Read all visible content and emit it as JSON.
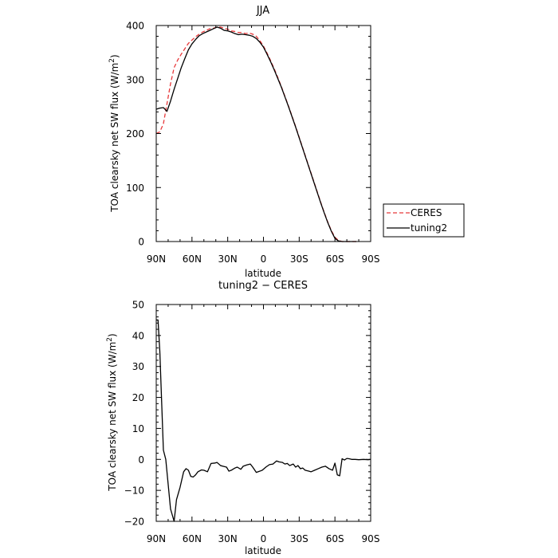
{
  "chart_data": [
    {
      "type": "line",
      "title": "JJA",
      "xlabel": "latitude",
      "ylabel": "TOA clearsky net SW flux (W/m²)",
      "ylabel_parts": [
        "TOA clearsky net SW flux (W/m",
        "2",
        ")"
      ],
      "xlim": [
        90,
        -90
      ],
      "ylim": [
        0,
        400
      ],
      "x_ticks": [
        90,
        60,
        30,
        0,
        -30,
        -60,
        -90
      ],
      "x_tick_labels": [
        "90N",
        "60N",
        "30N",
        "0",
        "30S",
        "60S",
        "90S"
      ],
      "y_ticks": [
        0,
        100,
        200,
        300,
        400
      ],
      "y_tick_labels": [
        "0",
        "100",
        "200",
        "300",
        "400"
      ],
      "legend": "right-outside",
      "series": [
        {
          "name": "CERES",
          "color": "#e8393b",
          "style": "dashed",
          "x": [
            90,
            87,
            84,
            81,
            78,
            75,
            72,
            69,
            66,
            63,
            60,
            57,
            54,
            51,
            48,
            45,
            42,
            39,
            36,
            33,
            30,
            27,
            24,
            21,
            18,
            15,
            12,
            9,
            6,
            3,
            0,
            -3,
            -6,
            -9,
            -12,
            -15,
            -18,
            -21,
            -24,
            -27,
            -30,
            -33,
            -36,
            -39,
            -42,
            -45,
            -48,
            -51,
            -54,
            -57,
            -60,
            -63,
            -66,
            -69,
            -72,
            -75,
            -78
          ],
          "y": [
            200,
            203,
            218,
            255,
            292,
            322,
            336,
            347,
            357,
            367,
            373,
            379,
            384,
            388,
            391,
            394,
            395,
            397,
            397,
            395,
            393,
            390,
            389,
            387,
            387,
            385,
            386,
            384,
            380,
            372,
            362,
            349,
            335,
            320,
            304,
            287,
            269,
            251,
            232,
            213,
            193,
            173,
            153,
            133,
            113,
            93,
            73,
            54,
            36,
            20,
            8,
            2,
            0,
            0,
            0,
            0,
            0
          ]
        },
        {
          "name": "tuning2",
          "color": "#000000",
          "style": "solid",
          "x": [
            90,
            87,
            84,
            81,
            78,
            75,
            72,
            69,
            66,
            63,
            60,
            57,
            54,
            51,
            48,
            45,
            42,
            39,
            36,
            33,
            30,
            27,
            24,
            21,
            18,
            15,
            12,
            9,
            6,
            3,
            0,
            -3,
            -6,
            -9,
            -12,
            -15,
            -18,
            -21,
            -24,
            -27,
            -30,
            -33,
            -36,
            -39,
            -42,
            -45,
            -48,
            -51,
            -54,
            -57,
            -60,
            -63,
            -66,
            -69,
            -72,
            -75,
            -78
          ],
          "y": [
            245,
            247,
            248,
            241,
            260,
            282,
            302,
            322,
            339,
            355,
            366,
            374,
            381,
            385,
            388,
            391,
            394,
            397,
            395,
            391,
            390,
            388,
            385,
            383,
            384,
            383,
            382,
            380,
            376,
            369,
            360,
            347,
            333,
            318,
            302,
            286,
            268,
            250,
            231,
            212,
            192,
            172,
            152,
            132,
            112,
            92,
            72,
            53,
            35,
            19,
            6,
            1,
            0,
            0,
            0,
            0,
            0
          ]
        }
      ]
    },
    {
      "type": "line",
      "title": "tuning2 − CERES",
      "xlabel": "latitude",
      "ylabel": "TOA clearsky net SW flux (W/m²)",
      "ylabel_parts": [
        "TOA clearsky net SW flux (W/m",
        "2",
        ")"
      ],
      "xlim": [
        90,
        -90
      ],
      "ylim": [
        -20,
        50
      ],
      "x_ticks": [
        90,
        60,
        30,
        0,
        -30,
        -60,
        -90
      ],
      "x_tick_labels": [
        "90N",
        "60N",
        "30N",
        "0",
        "30S",
        "60S",
        "90S"
      ],
      "y_ticks": [
        -20,
        -10,
        0,
        10,
        20,
        30,
        40,
        50
      ],
      "y_tick_labels": [
        "−20",
        "−10",
        "0",
        "10",
        "20",
        "30",
        "40",
        "50"
      ],
      "series": [
        {
          "name": "tuning2 − CERES",
          "color": "#000000",
          "style": "solid",
          "x": [
            90,
            88.5,
            87,
            84,
            82,
            80,
            78,
            75,
            73,
            70,
            67,
            65,
            63,
            61,
            59,
            57,
            55,
            52,
            50,
            47,
            44,
            41,
            39,
            36,
            34,
            31,
            29,
            27,
            24,
            22,
            19,
            17,
            14,
            11,
            9,
            6,
            3,
            1,
            -2,
            -5,
            -8,
            -11,
            -13,
            -16,
            -18,
            -20,
            -22,
            -25,
            -27,
            -29,
            -31,
            -33,
            -35,
            -38,
            -40,
            -43,
            -46,
            -49,
            -52,
            -55,
            -58,
            -60,
            -62,
            -64,
            -66,
            -68,
            -70,
            -72,
            -74,
            -77,
            -80,
            -84,
            -88,
            -90
          ],
          "y": [
            45,
            45,
            35,
            3,
            0,
            -8,
            -16,
            -20,
            -13,
            -9,
            -4,
            -3,
            -3.5,
            -5.5,
            -5.7,
            -5,
            -4,
            -3.4,
            -3.5,
            -4,
            -1.3,
            -1.2,
            -1,
            -2,
            -2.2,
            -2.5,
            -3.8,
            -3.5,
            -2.8,
            -2.5,
            -3.2,
            -2.2,
            -1.8,
            -1.5,
            -2.5,
            -4.2,
            -3.8,
            -3.5,
            -2.5,
            -1.7,
            -1.5,
            -0.5,
            -0.8,
            -1,
            -1.5,
            -1.3,
            -2,
            -1.5,
            -2.5,
            -2,
            -3,
            -2.8,
            -3.5,
            -3.8,
            -4,
            -3.5,
            -3,
            -2.5,
            -2.2,
            -3,
            -3.5,
            -1.2,
            -5,
            -5.3,
            0.2,
            -0.2,
            0.3,
            0.2,
            0,
            0,
            -0.1,
            0,
            -0.1,
            0
          ]
        }
      ]
    }
  ]
}
